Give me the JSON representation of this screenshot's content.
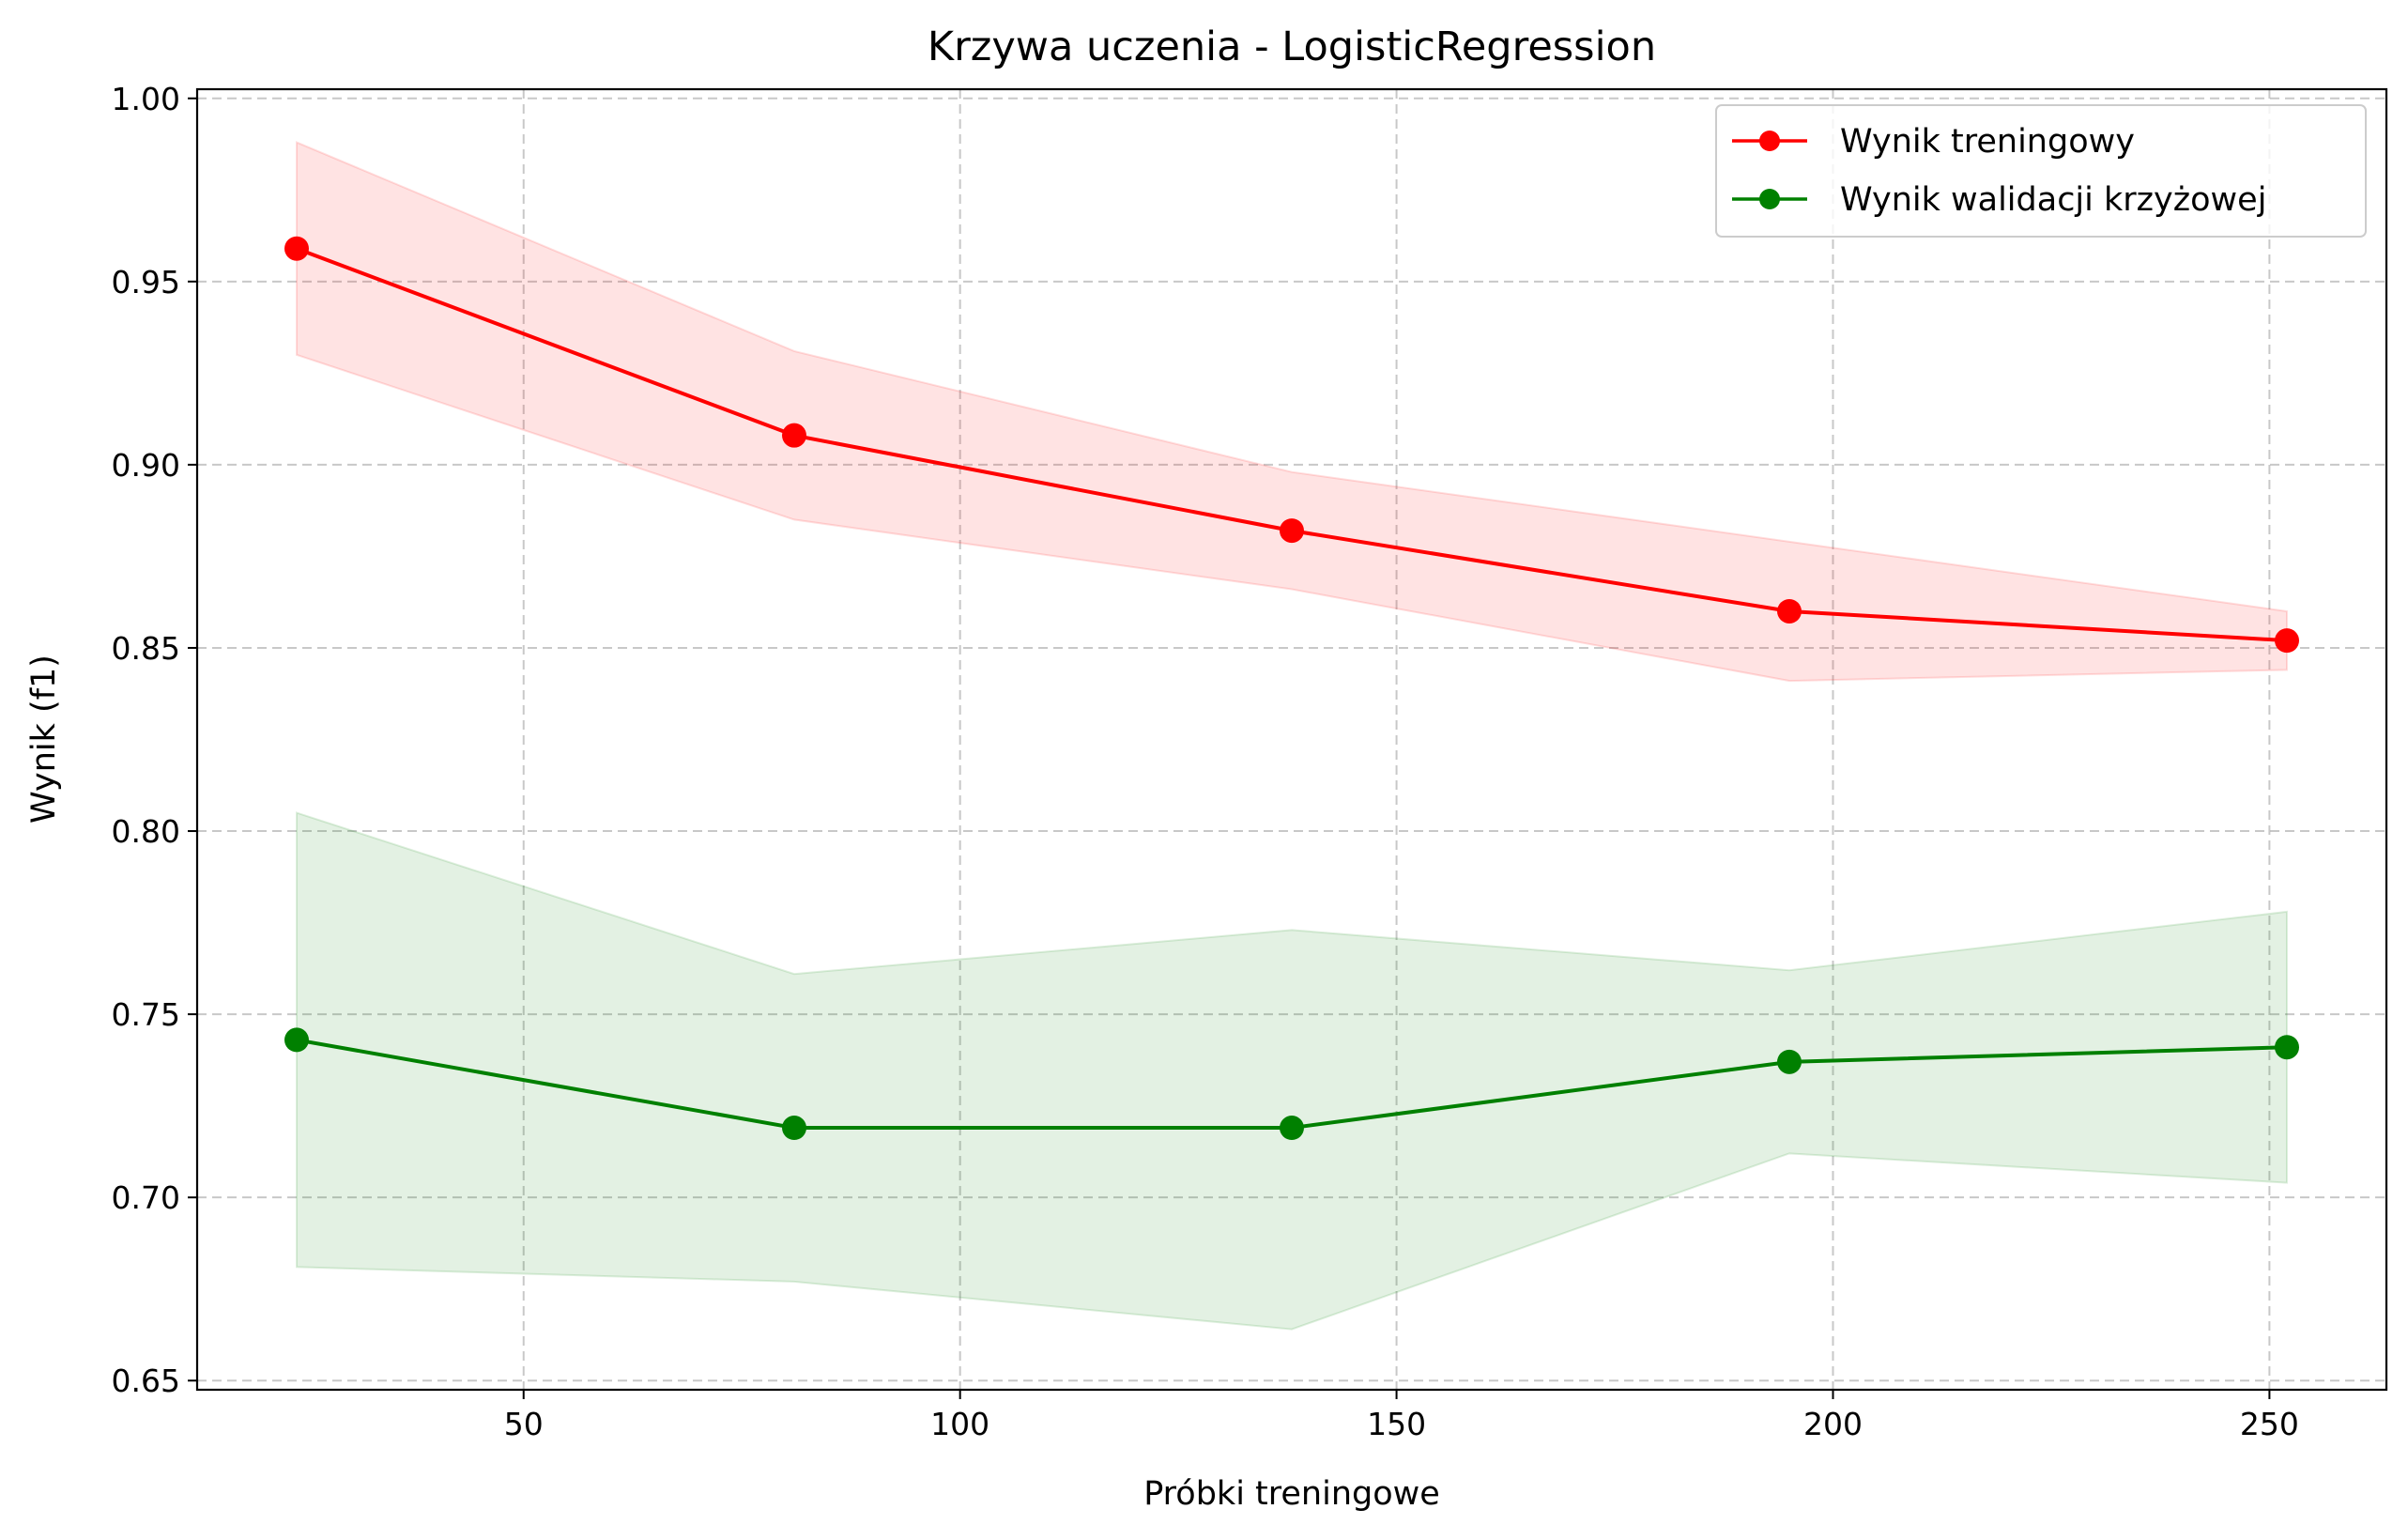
{
  "chart_data": {
    "type": "line",
    "title": "Krzywa uczenia - LogisticRegression",
    "xlabel": "Próbki treningowe",
    "ylabel": "Wynik (f1)",
    "xlim": [
      12.6,
      263.4
    ],
    "ylim": [
      0.6475,
      1.0025
    ],
    "x_ticks": [
      50,
      100,
      150,
      200,
      250
    ],
    "x_tick_labels": [
      "50",
      "100",
      "150",
      "200",
      "250"
    ],
    "y_ticks": [
      0.65,
      0.7,
      0.75,
      0.8,
      0.85,
      0.9,
      0.95,
      1.0
    ],
    "y_tick_labels": [
      "0.65",
      "0.70",
      "0.75",
      "0.80",
      "0.85",
      "0.90",
      "0.95",
      "1.00"
    ],
    "grid": true,
    "legend_position": "top-right",
    "x": [
      24,
      81,
      138,
      195,
      252
    ],
    "series": [
      {
        "name": "Wynik treningowy",
        "color": "#ff0000",
        "band_color": "#ff0000",
        "values": [
          0.959,
          0.908,
          0.882,
          0.86,
          0.852
        ],
        "upper": [
          0.988,
          0.931,
          0.898,
          0.879,
          0.86
        ],
        "lower": [
          0.93,
          0.885,
          0.866,
          0.841,
          0.844
        ]
      },
      {
        "name": "Wynik walidacji krzyżowej",
        "color": "#008000",
        "band_color": "#008000",
        "values": [
          0.743,
          0.719,
          0.719,
          0.737,
          0.741
        ],
        "upper": [
          0.805,
          0.761,
          0.773,
          0.762,
          0.778
        ],
        "lower": [
          0.681,
          0.677,
          0.664,
          0.712,
          0.704
        ]
      }
    ]
  }
}
